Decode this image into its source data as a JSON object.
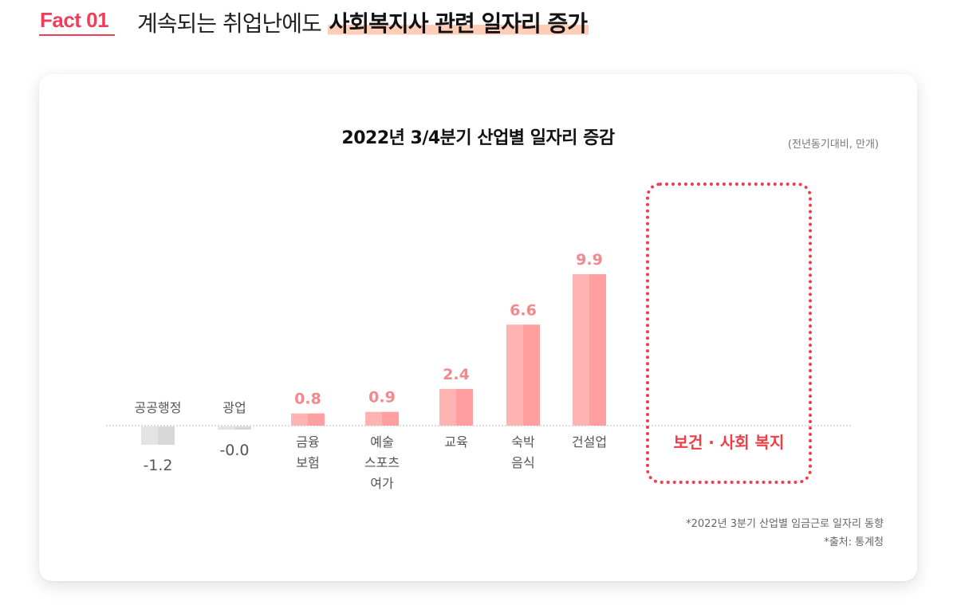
{
  "header": {
    "fact_label": "Fact 01",
    "headline_prefix": "계속되는 취업난에도 ",
    "headline_highlight": "사회복지사 관련 일자리 증가"
  },
  "notes": {
    "note1": "*2022년 3분기 산업별 임금근로 일자리 동향",
    "note2": "*출처: 통계청"
  },
  "chart_data": {
    "type": "bar",
    "title": "2022년 3/4분기 산업별 일자리 증감",
    "unit_label": "(전년동기대비, 만개)",
    "categories": [
      [
        "공공행정"
      ],
      [
        "광업"
      ],
      [
        "금융",
        "보험"
      ],
      [
        "예술",
        "스포츠",
        "여가"
      ],
      [
        "교육"
      ],
      [
        "숙박",
        "음식"
      ],
      [
        "건설업"
      ],
      [
        "보건 · 사회 복지"
      ]
    ],
    "values": [
      -1.2,
      -0.0,
      0.8,
      0.9,
      2.4,
      6.6,
      9.9,
      null
    ],
    "value_labels": [
      "-1.2",
      "-0.0",
      "0.8",
      "0.9",
      "2.4",
      "6.6",
      "9.9",
      ""
    ],
    "highlighted_category": "보건 · 사회 복지",
    "colors": {
      "positive_light": "#ffb3b3",
      "positive_dark": "#ff9f9f",
      "negative_light": "#e4e4e4",
      "negative_dark": "#d8d8d8",
      "positive_label": "#f4888c",
      "negative_label": "#555555",
      "highlight": "#ef3e47",
      "baseline": "#bbbbbb"
    },
    "ylim": [
      -1.5,
      12
    ],
    "grid": false,
    "legend": "none"
  }
}
